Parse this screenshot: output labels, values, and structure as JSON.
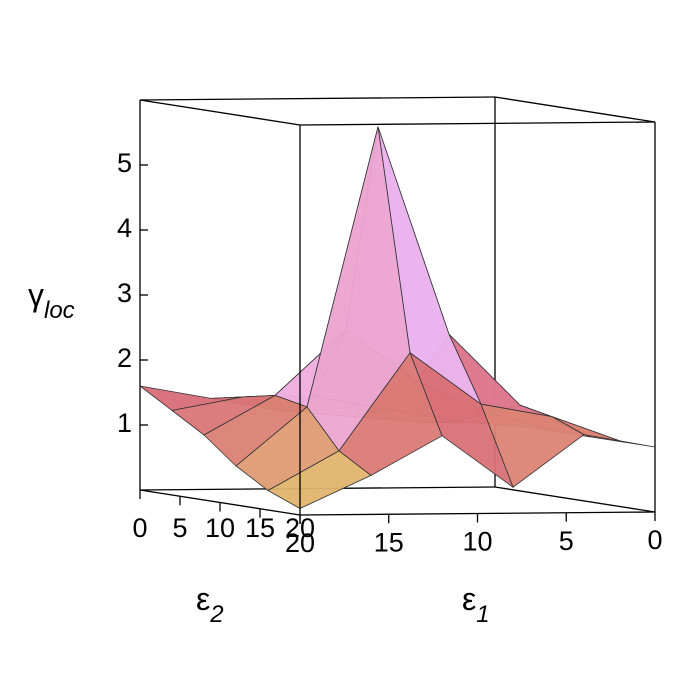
{
  "chart_data": {
    "type": "surface",
    "zlabel": {
      "symbol": "γ",
      "subscript": "loc"
    },
    "xlabel": {
      "symbol": "ε",
      "subscript": "1"
    },
    "ylabel": {
      "symbol": "ε",
      "subscript": "2"
    },
    "x": [
      0,
      4,
      8,
      12,
      16,
      20
    ],
    "y": [
      0,
      4,
      8,
      12,
      16,
      20
    ],
    "z": [
      [
        1.0,
        1.0,
        1.1,
        1.2,
        1.4,
        1.6
      ],
      [
        1.0,
        1.1,
        1.3,
        1.5,
        1.5,
        1.3
      ],
      [
        1.0,
        1.3,
        1.8,
        2.6,
        1.6,
        1.0
      ],
      [
        1.0,
        1.5,
        2.6,
        5.8,
        1.5,
        0.6
      ],
      [
        1.0,
        1.4,
        1.6,
        2.4,
        0.9,
        0.3
      ],
      [
        1.0,
        1.2,
        0.4,
        1.2,
        0.6,
        0.1
      ]
    ],
    "xlim": [
      0,
      20
    ],
    "ylim": [
      0,
      20
    ],
    "zlim": [
      0,
      6
    ],
    "xticks": [
      0,
      5,
      10,
      15,
      20
    ],
    "yticks": [
      0,
      5,
      10,
      15,
      20
    ],
    "zticks": [
      1,
      2,
      3,
      4,
      5
    ],
    "colormap": [
      "#e6d66a",
      "#d86a78",
      "#f2b8ee",
      "#8c7ce6",
      "#3a2eb0"
    ],
    "box": true
  }
}
